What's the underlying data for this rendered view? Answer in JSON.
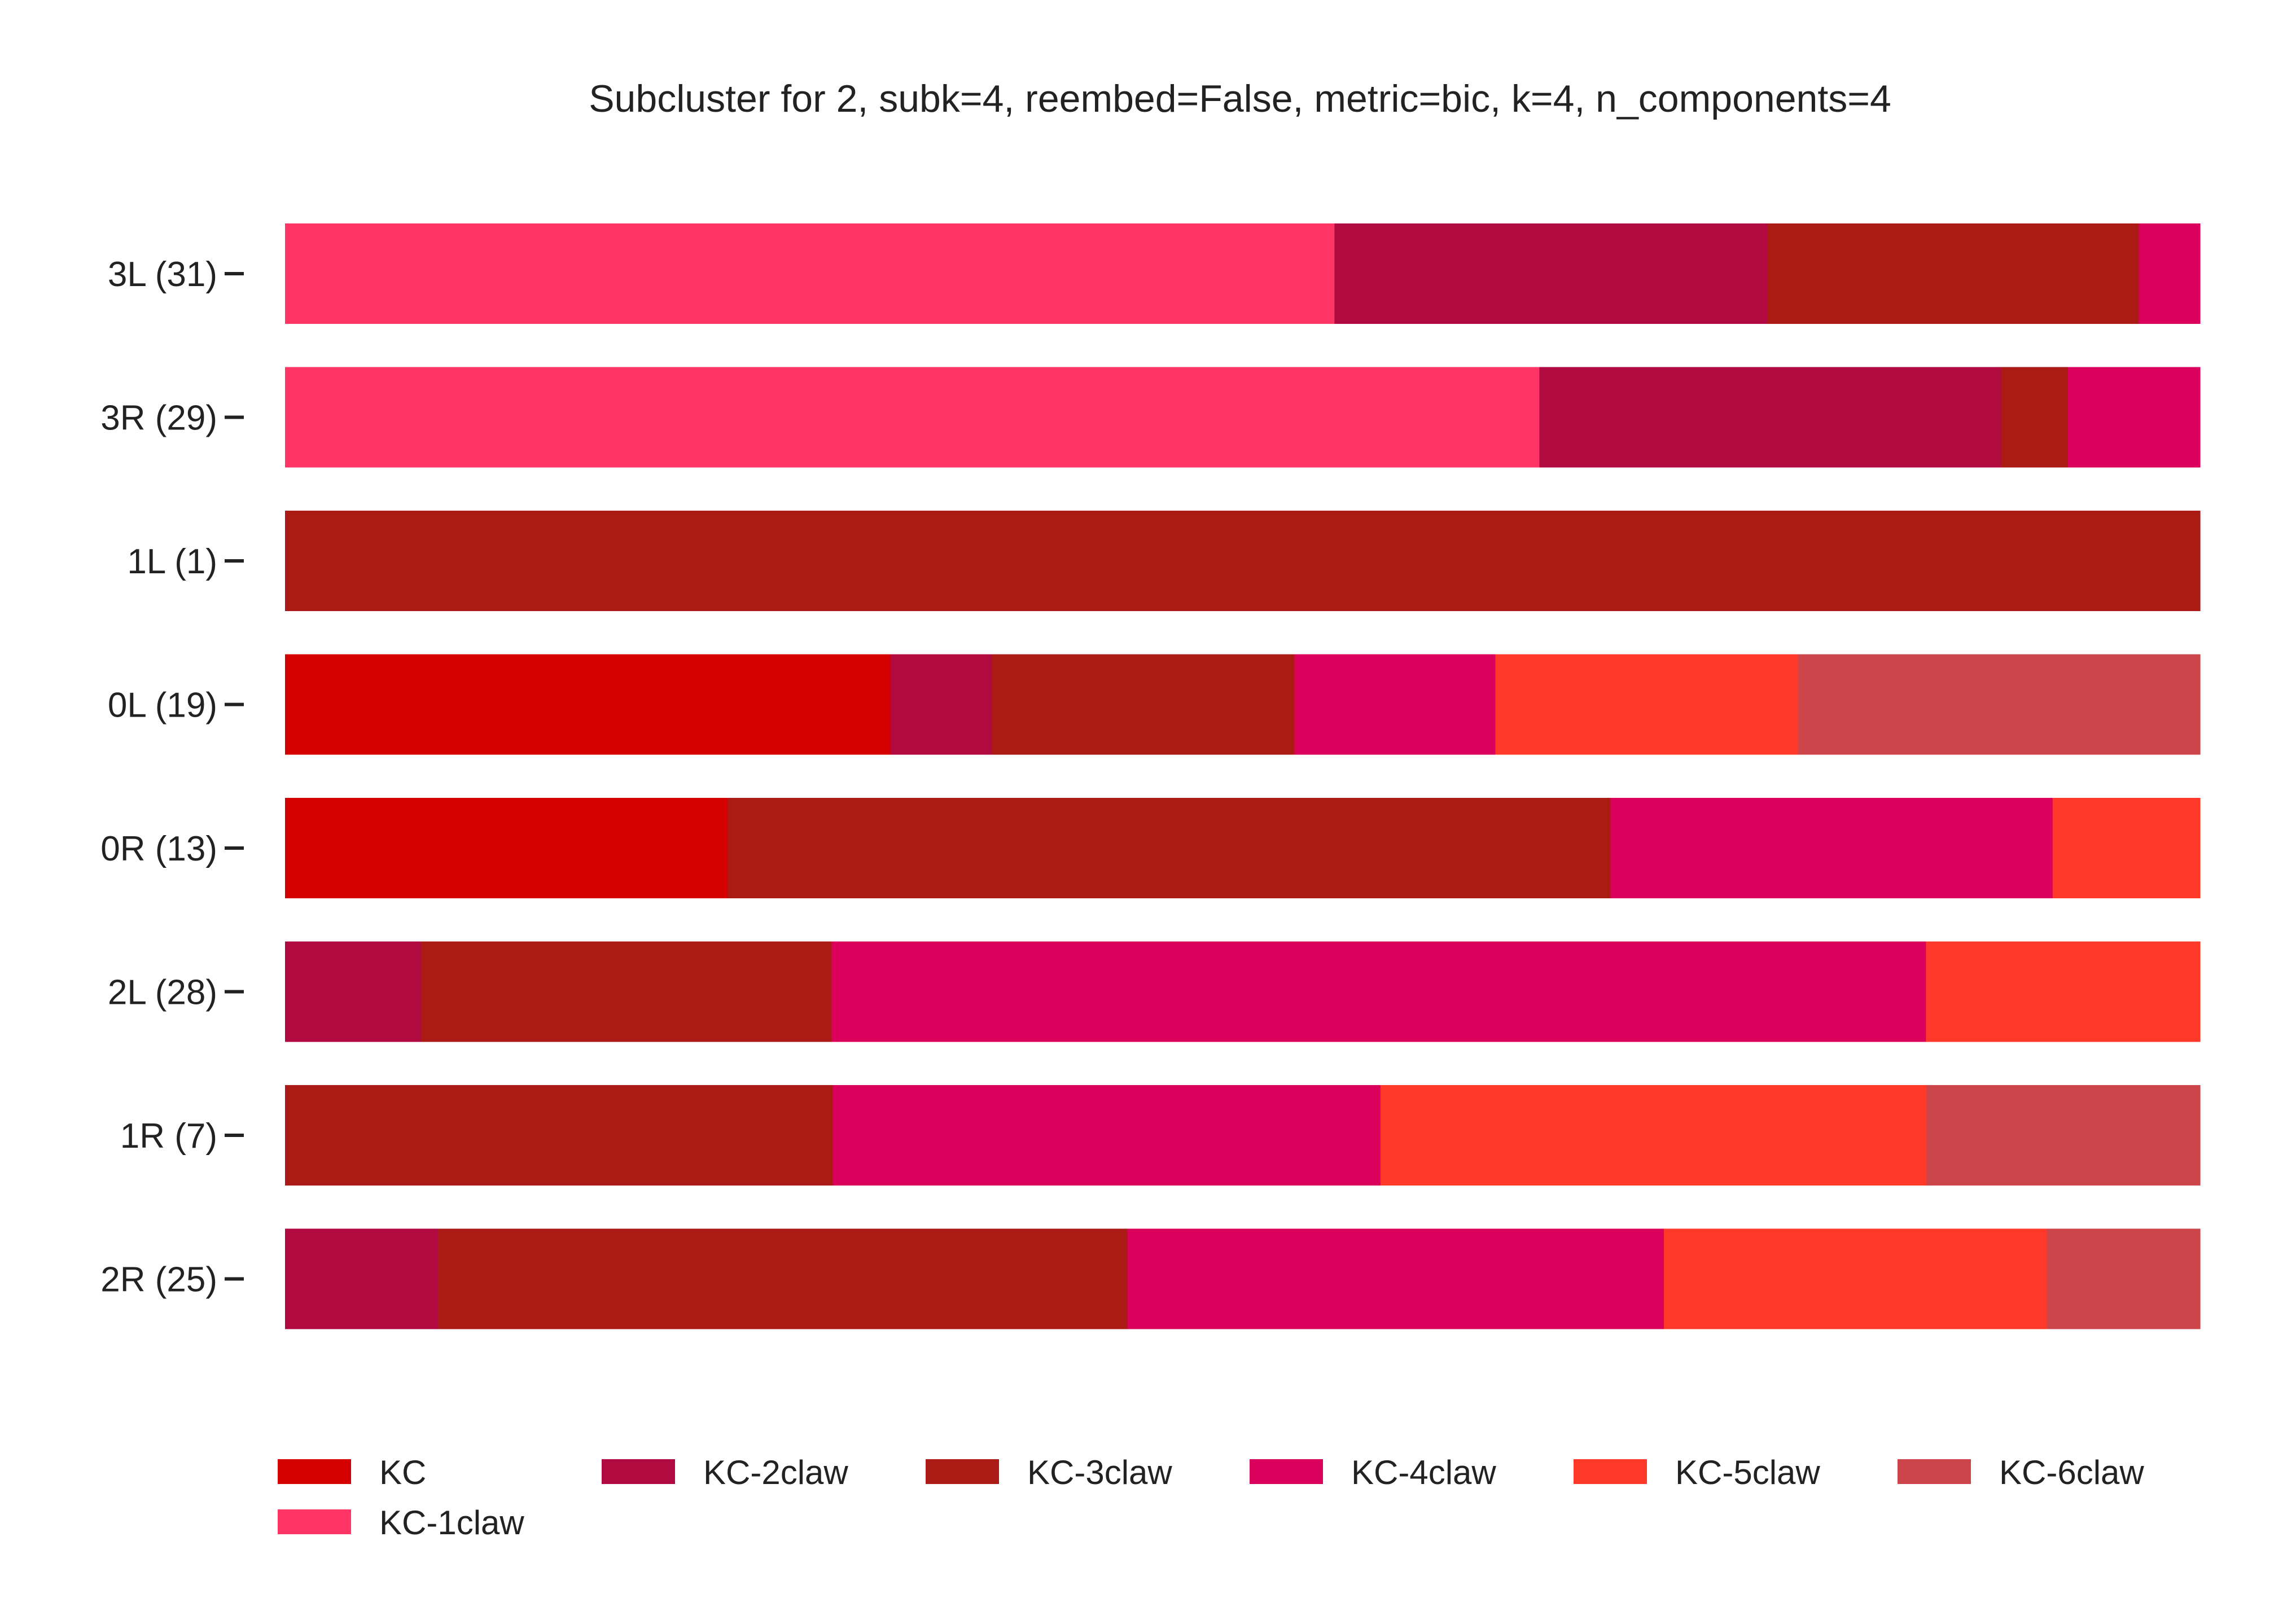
{
  "chart_data": {
    "type": "bar",
    "orientation": "horizontal",
    "stacked": true,
    "normalized": true,
    "title": "Subcluster for 2, subk=4, reembed=False, metric=bic, k=4, n_components=4",
    "xlabel": "",
    "ylabel": "",
    "xlim": [
      0,
      1
    ],
    "grid": false,
    "legend_position": "bottom",
    "categories": [
      "3L (31)",
      "3R (29)",
      "1L (1)",
      "0L (19)",
      "0R (13)",
      "2L (28)",
      "1R (7)",
      "2R (25)"
    ],
    "series": [
      {
        "name": "KC",
        "color": "#d40000",
        "values": [
          0,
          0,
          0,
          0.316,
          0.231,
          0,
          0,
          0
        ]
      },
      {
        "name": "KC-1claw",
        "color": "#ff3566",
        "values": [
          0.548,
          0.655,
          0,
          0,
          0,
          0,
          0,
          0
        ]
      },
      {
        "name": "KC-2claw",
        "color": "#b00a40",
        "values": [
          0.226,
          0.241,
          0,
          0.053,
          0,
          0.071,
          0,
          0.08
        ]
      },
      {
        "name": "KC-3claw",
        "color": "#ab1a14",
        "values": [
          0.194,
          0.035,
          1.0,
          0.158,
          0.461,
          0.214,
          0.286,
          0.36
        ]
      },
      {
        "name": "KC-4claw",
        "color": "#db005b",
        "values": [
          0.032,
          0.069,
          0,
          0.105,
          0.231,
          0.571,
          0.286,
          0.28
        ]
      },
      {
        "name": "KC-5claw",
        "color": "#ff392a",
        "values": [
          0,
          0,
          0,
          0.158,
          0.077,
          0.143,
          0.285,
          0.2
        ]
      },
      {
        "name": "KC-6claw",
        "color": "#cc454a",
        "values": [
          0,
          0,
          0,
          0.21,
          0,
          0,
          0.143,
          0.08
        ]
      }
    ],
    "legend_order": [
      "KC",
      "KC-2claw",
      "KC-3claw",
      "KC-4claw",
      "KC-5claw",
      "KC-6claw",
      "KC-1claw"
    ]
  }
}
